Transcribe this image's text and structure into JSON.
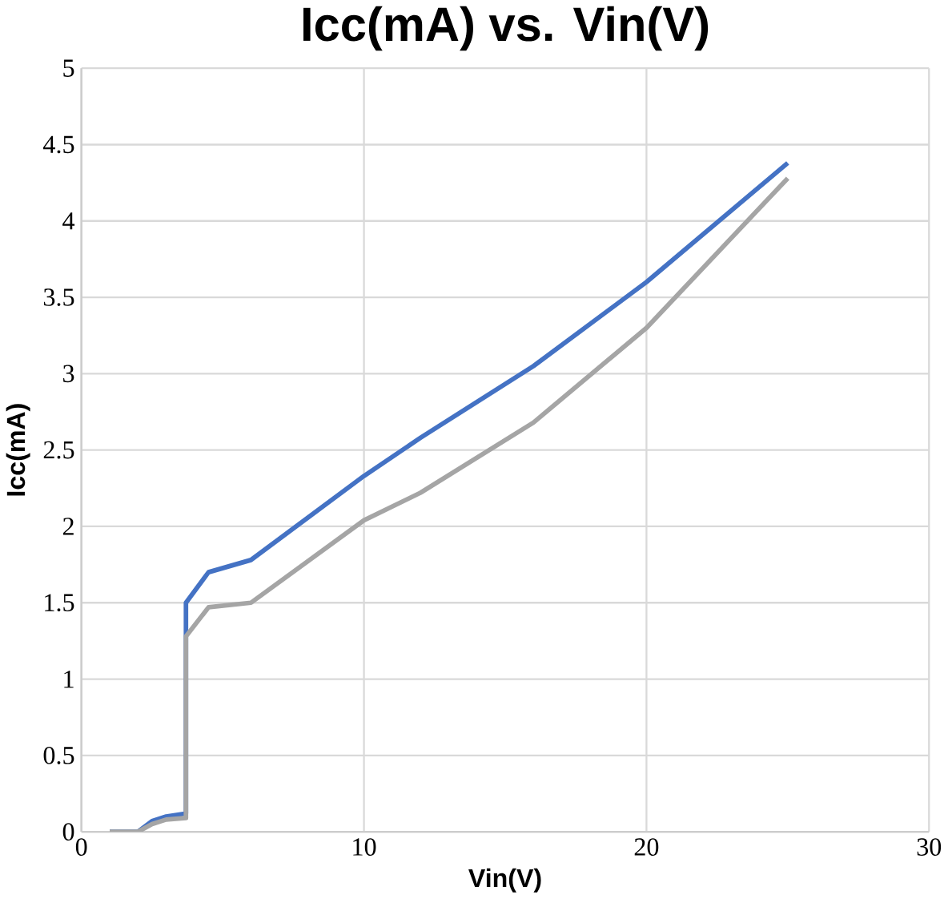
{
  "chart_data": {
    "type": "line",
    "title": "Icc(mA) vs. Vin(V)",
    "xlabel": "Vin(V)",
    "ylabel": "Icc(mA)",
    "series": [
      {
        "color": "#4472c4",
        "x": [
          1,
          2,
          2.5,
          3,
          3.7,
          3.7,
          4.5,
          6,
          10,
          12,
          16,
          20,
          25
        ],
        "values": [
          0,
          0,
          0.07,
          0.1,
          0.12,
          1.5,
          1.7,
          1.78,
          2.33,
          2.58,
          3.05,
          3.6,
          4.38
        ]
      },
      {
        "color": "#a5a5a5",
        "x": [
          1,
          2,
          2.5,
          3,
          3.7,
          3.7,
          4.5,
          6,
          10,
          12,
          16,
          20,
          25
        ],
        "values": [
          0,
          0,
          0.05,
          0.08,
          0.09,
          1.28,
          1.47,
          1.5,
          2.04,
          2.22,
          2.68,
          3.3,
          4.28
        ]
      }
    ],
    "xlim": [
      0,
      30
    ],
    "xticks": [
      0,
      10,
      20,
      30
    ],
    "ylim": [
      0,
      5
    ],
    "yticks": [
      0,
      0.5,
      1,
      1.5,
      2,
      2.5,
      3,
      3.5,
      4,
      4.5,
      5
    ],
    "grid": true,
    "marker": "none",
    "line_style": "solid"
  }
}
